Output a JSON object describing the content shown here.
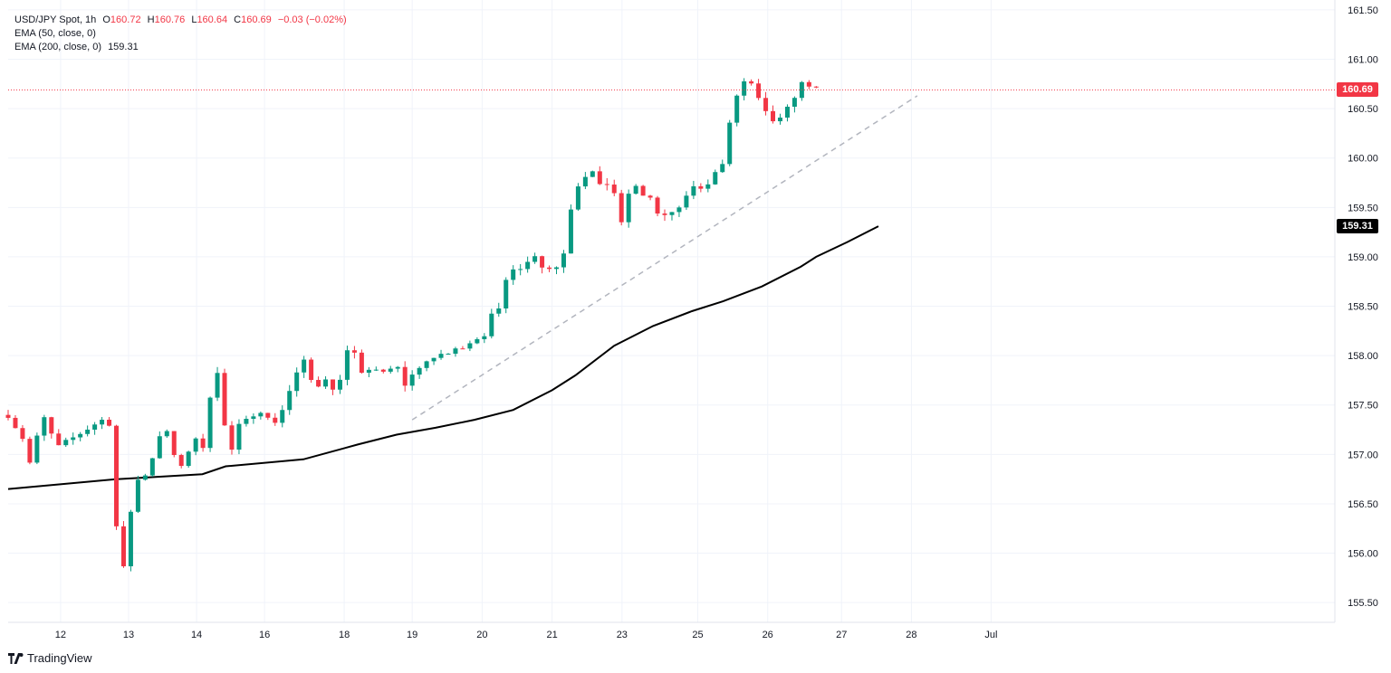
{
  "legend": {
    "symbol": "USD/JPY Spot, 1h",
    "open_label": "O",
    "open": "160.72",
    "high_label": "H",
    "high": "160.76",
    "low_label": "L",
    "low": "160.64",
    "close_label": "C",
    "close": "160.69",
    "change": "−0.03 (−0.02%)",
    "ema50": "EMA (50, close, 0)",
    "ema200": "EMA (200, close, 0)",
    "ema200_value": "159.31"
  },
  "brand": {
    "name": "TradingView"
  },
  "colors": {
    "up": "#089981",
    "down": "#f23645",
    "ema": "#000000",
    "trend": "#b2b5be",
    "grid": "#f0f3fa",
    "axis_text": "#131722"
  },
  "chart_data": {
    "type": "candlestick",
    "interval": "1h",
    "symbol": "USD/JPY Spot",
    "y_axis": {
      "ylim": [
        155.3,
        161.6
      ],
      "ticks": [
        "155.50",
        "156.00",
        "156.50",
        "157.00",
        "157.50",
        "158.00",
        "158.50",
        "159.00",
        "159.50",
        "160.00",
        "160.50",
        "161.00",
        "161.50"
      ]
    },
    "x_axis": {
      "ticks": [
        {
          "label": "12",
          "t": 6.75
        },
        {
          "label": "13",
          "t": 15.5
        },
        {
          "label": "14",
          "t": 24.25
        },
        {
          "label": "16",
          "t": 33
        },
        {
          "label": "18",
          "t": 43.25
        },
        {
          "label": "19",
          "t": 52
        },
        {
          "label": "20",
          "t": 61
        },
        {
          "label": "21",
          "t": 70
        },
        {
          "label": "23",
          "t": 79
        },
        {
          "label": "25",
          "t": 88.75
        },
        {
          "label": "26",
          "t": 97.75
        },
        {
          "label": "27",
          "t": 107.25
        },
        {
          "label": "28",
          "t": 116.25
        },
        {
          "label": "Jul",
          "t": 126.5
        }
      ]
    },
    "current_price": {
      "label": "160.69",
      "value": 160.69
    },
    "ema200_label": {
      "label": "159.31",
      "value": 159.31
    },
    "anchors": [
      [
        0,
        157.4
      ],
      [
        2,
        157.15
      ],
      [
        3,
        156.85
      ],
      [
        4,
        157.3
      ],
      [
        5,
        157.4
      ],
      [
        6,
        157.05
      ],
      [
        8,
        157.15
      ],
      [
        9,
        157.2
      ],
      [
        11,
        157.3
      ],
      [
        12,
        157.35
      ],
      [
        13.5,
        157.3
      ],
      [
        14,
        156.1
      ],
      [
        15,
        155.8
      ],
      [
        16,
        156.6
      ],
      [
        17,
        156.8
      ],
      [
        18,
        156.8
      ],
      [
        19,
        157.1
      ],
      [
        20,
        157.3
      ],
      [
        21,
        157.1
      ],
      [
        22,
        156.8
      ],
      [
        23,
        157.0
      ],
      [
        24,
        157.2
      ],
      [
        25,
        157.0
      ],
      [
        26,
        157.6
      ],
      [
        26.5,
        158.15
      ],
      [
        27,
        157.8
      ],
      [
        28,
        157.2
      ],
      [
        29,
        157.0
      ],
      [
        30,
        157.4
      ],
      [
        31,
        157.3
      ],
      [
        32,
        157.5
      ],
      [
        33,
        157.4
      ],
      [
        34,
        157.3
      ],
      [
        35,
        157.4
      ],
      [
        36,
        157.6
      ],
      [
        37,
        157.8
      ],
      [
        38,
        157.95
      ],
      [
        39,
        157.75
      ],
      [
        40,
        157.7
      ],
      [
        41,
        157.8
      ],
      [
        42,
        157.6
      ],
      [
        43,
        157.85
      ],
      [
        44,
        158.15
      ],
      [
        44.5,
        158.05
      ],
      [
        45,
        157.75
      ],
      [
        46,
        157.85
      ],
      [
        47,
        157.9
      ],
      [
        48,
        157.8
      ],
      [
        49,
        157.85
      ],
      [
        50,
        157.9
      ],
      [
        51,
        157.7
      ],
      [
        52,
        157.8
      ],
      [
        53,
        157.9
      ],
      [
        54,
        157.95
      ],
      [
        55,
        157.95
      ],
      [
        56,
        158.05
      ],
      [
        57,
        158.0
      ],
      [
        58,
        158.1
      ],
      [
        59,
        158.1
      ],
      [
        60,
        158.2
      ],
      [
        61,
        158.15
      ],
      [
        62,
        158.4
      ],
      [
        63,
        158.4
      ],
      [
        64,
        158.75
      ],
      [
        65,
        158.9
      ],
      [
        66,
        158.9
      ],
      [
        67,
        158.95
      ],
      [
        68,
        159.05
      ],
      [
        69,
        158.85
      ],
      [
        70,
        158.9
      ],
      [
        71,
        158.9
      ],
      [
        72,
        159.2
      ],
      [
        72.5,
        159.55
      ],
      [
        73,
        159.7
      ],
      [
        74,
        159.8
      ],
      [
        75,
        159.9
      ],
      [
        76,
        159.7
      ],
      [
        77,
        159.75
      ],
      [
        78,
        159.65
      ],
      [
        79,
        159.3
      ],
      [
        80,
        159.7
      ],
      [
        81,
        159.7
      ],
      [
        82,
        159.6
      ],
      [
        83,
        159.6
      ],
      [
        84,
        159.3
      ],
      [
        85,
        159.5
      ],
      [
        86,
        159.4
      ],
      [
        87,
        159.6
      ],
      [
        88,
        159.7
      ],
      [
        89,
        159.7
      ],
      [
        90,
        159.75
      ],
      [
        91,
        159.85
      ],
      [
        92,
        159.95
      ],
      [
        93,
        160.4
      ],
      [
        94,
        160.7
      ],
      [
        95,
        160.8
      ],
      [
        96,
        160.7
      ],
      [
        97,
        160.5
      ],
      [
        98,
        160.4
      ],
      [
        99,
        160.35
      ],
      [
        100,
        160.45
      ],
      [
        101,
        160.6
      ],
      [
        102,
        160.75
      ],
      [
        103,
        160.75
      ],
      [
        104,
        160.69
      ]
    ],
    "ema200_points": [
      [
        0,
        156.65
      ],
      [
        14,
        156.75
      ],
      [
        25,
        156.8
      ],
      [
        28,
        156.88
      ],
      [
        38,
        156.95
      ],
      [
        45,
        157.1
      ],
      [
        50,
        157.2
      ],
      [
        55,
        157.27
      ],
      [
        60,
        157.35
      ],
      [
        65,
        157.45
      ],
      [
        70,
        157.65
      ],
      [
        73,
        157.8
      ],
      [
        78,
        158.1
      ],
      [
        83,
        158.3
      ],
      [
        88,
        158.45
      ],
      [
        92,
        158.55
      ],
      [
        97,
        158.7
      ],
      [
        102,
        158.9
      ],
      [
        104,
        159.0
      ],
      [
        108,
        159.15
      ],
      [
        112,
        159.31
      ]
    ],
    "trendline": {
      "from": [
        52,
        157.35
      ],
      "to": [
        117,
        160.63
      ]
    },
    "candle_count": 113
  }
}
